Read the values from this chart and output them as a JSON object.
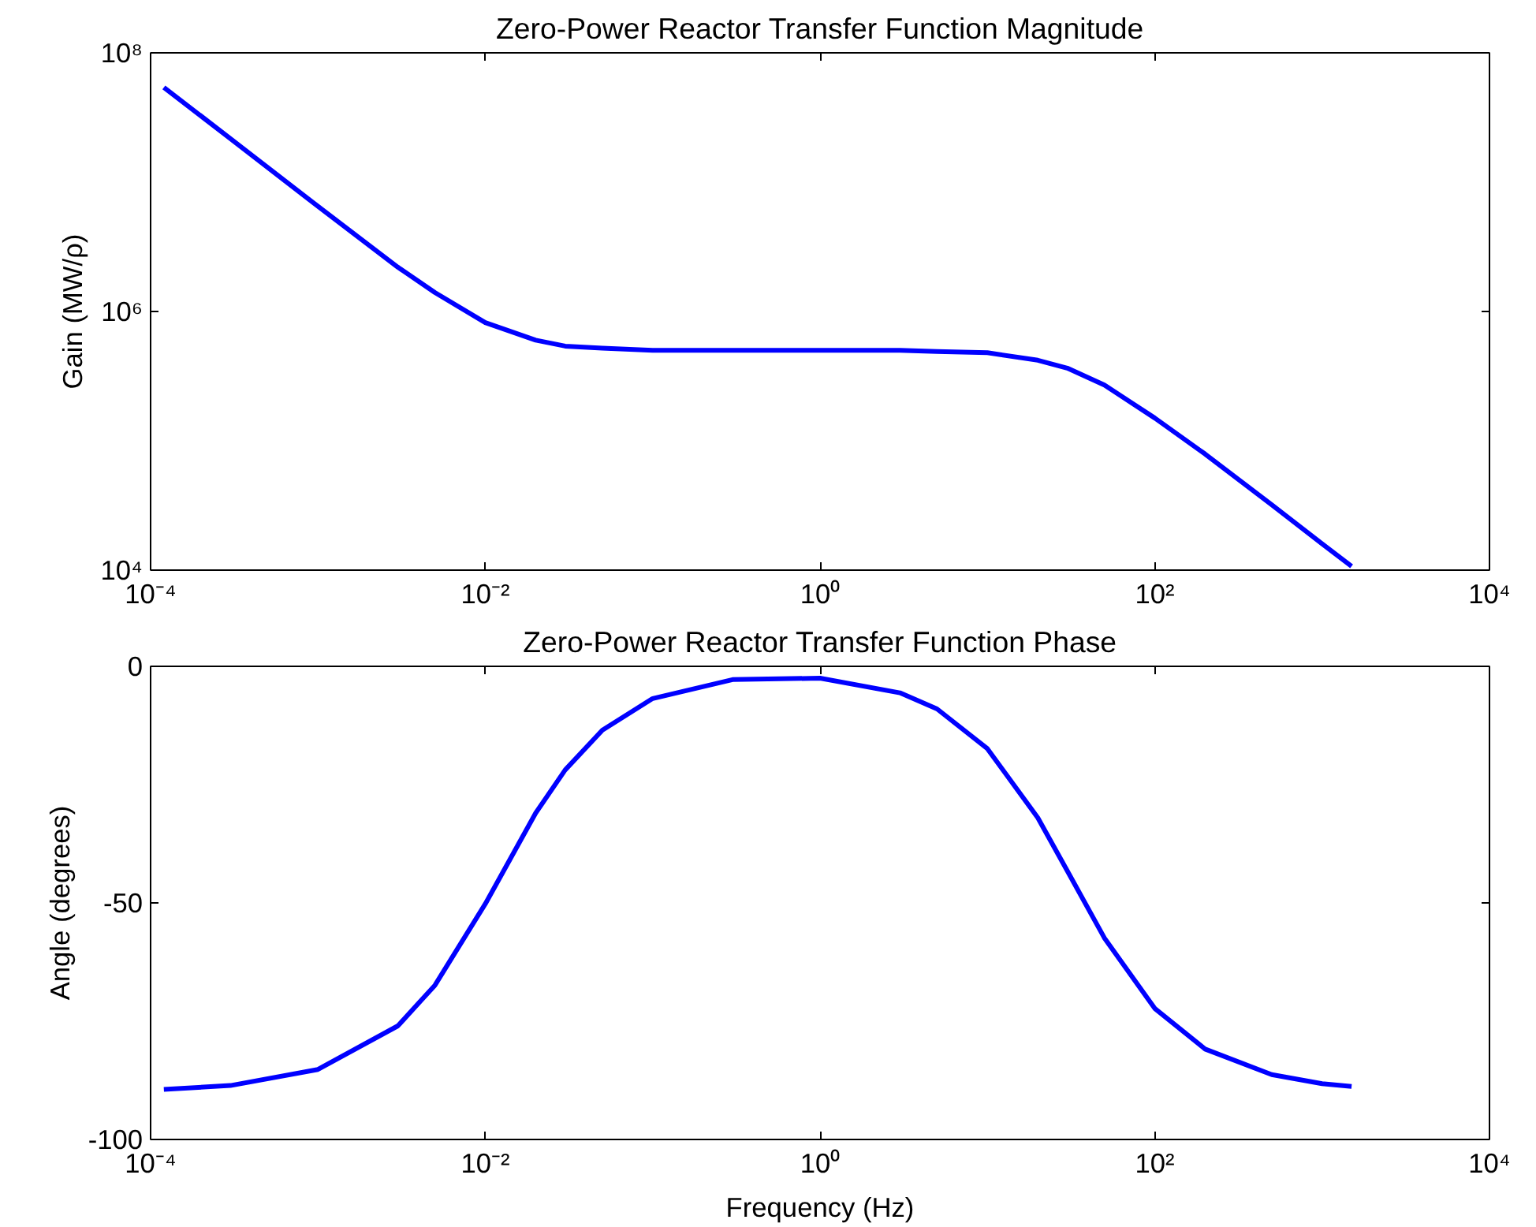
{
  "chart_data": [
    {
      "type": "line",
      "title": "Zero-Power Reactor Transfer Function Magnitude",
      "ylabel": "Gain (MW/ρ)",
      "log": "xy",
      "grid": false,
      "marker": "none",
      "line_style": "solid",
      "xlim": [
        0.0001,
        10000
      ],
      "xticks": [
        {
          "value": 0.0001,
          "label": "10⁻⁴"
        },
        {
          "value": 0.01,
          "label": "10⁻²"
        },
        {
          "value": 1,
          "label": "10⁰"
        },
        {
          "value": 100,
          "label": "10²"
        },
        {
          "value": 10000,
          "label": "10⁴"
        }
      ],
      "ylim": [
        10000,
        100000000
      ],
      "yticks": [
        {
          "value": 10000,
          "label": "10⁴"
        },
        {
          "value": 1000000,
          "label": "10⁶"
        },
        {
          "value": 100000000,
          "label": "10⁸"
        }
      ],
      "series": [
        {
          "color": "#0000ff",
          "x": [
            0.00012,
            0.0003,
            0.001,
            0.003,
            0.005,
            0.01,
            0.02,
            0.03,
            0.05,
            0.1,
            0.3,
            1,
            3,
            5,
            10,
            20,
            30,
            50,
            100,
            200,
            500,
            1000,
            1500
          ],
          "values": [
            54000000,
            21700000,
            6500000,
            2200000,
            1400000,
            820000,
            600000,
            540000,
            520000,
            500000,
            500000,
            500000,
            500000,
            490000,
            480000,
            420000,
            365000,
            270000,
            150000,
            79000,
            32000,
            16000,
            10700
          ]
        }
      ]
    },
    {
      "type": "line",
      "title": "Zero-Power Reactor Transfer Function Phase",
      "xlabel": "Frequency (Hz)",
      "ylabel": "Angle (degrees)",
      "log": "x",
      "grid": false,
      "marker": "none",
      "line_style": "solid",
      "xlim": [
        0.0001,
        10000
      ],
      "xticks": [
        {
          "value": 0.0001,
          "label": "10⁻⁴"
        },
        {
          "value": 0.01,
          "label": "10⁻²"
        },
        {
          "value": 1,
          "label": "10⁰"
        },
        {
          "value": 100,
          "label": "10²"
        },
        {
          "value": 10000,
          "label": "10⁴"
        }
      ],
      "ylim": [
        -100,
        0
      ],
      "yticks": [
        -100,
        -50,
        0
      ],
      "series": [
        {
          "color": "#0000ff",
          "x": [
            0.00012,
            0.0003,
            0.001,
            0.003,
            0.005,
            0.01,
            0.02,
            0.03,
            0.05,
            0.1,
            0.3,
            1,
            3,
            5,
            10,
            20,
            30,
            50,
            100,
            200,
            500,
            1000,
            1500
          ],
          "values": [
            -89.4,
            -88.6,
            -85.2,
            -76.0,
            -67.4,
            -50.2,
            -31.0,
            -21.9,
            -13.5,
            -6.8,
            -2.8,
            -2.5,
            -5.6,
            -9.0,
            -17.4,
            -32.0,
            -43.2,
            -57.4,
            -72.3,
            -80.9,
            -86.3,
            -88.2,
            -88.8
          ]
        }
      ]
    }
  ]
}
